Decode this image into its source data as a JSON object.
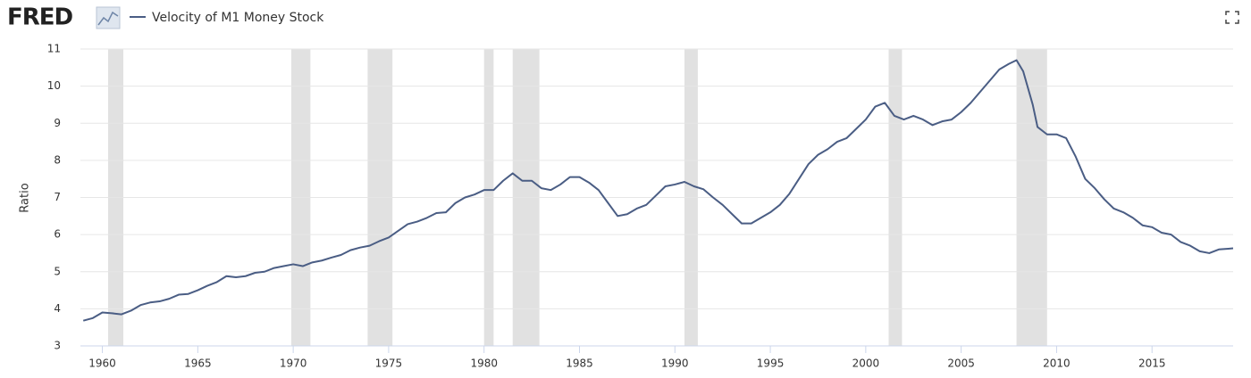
{
  "logo": "FRED",
  "chart_data": {
    "type": "line",
    "ylabel": "Ratio",
    "x": [
      1959,
      1959.5,
      1960,
      1960.5,
      1961,
      1961.5,
      1962,
      1962.5,
      1963,
      1963.5,
      1964,
      1964.5,
      1965,
      1965.5,
      1966,
      1966.5,
      1967,
      1967.5,
      1968,
      1968.5,
      1969,
      1969.5,
      1970,
      1970.5,
      1971,
      1971.5,
      1972,
      1972.5,
      1973,
      1973.5,
      1974,
      1974.5,
      1975,
      1975.5,
      1976,
      1976.5,
      1977,
      1977.5,
      1978,
      1978.5,
      1979,
      1979.5,
      1980,
      1980.5,
      1981,
      1981.5,
      1982,
      1982.5,
      1983,
      1983.5,
      1984,
      1984.5,
      1985,
      1985.5,
      1986,
      1986.5,
      1987,
      1987.5,
      1988,
      1988.5,
      1989,
      1989.5,
      1990,
      1990.5,
      1991,
      1991.5,
      1992,
      1992.5,
      1993,
      1993.5,
      1994,
      1994.5,
      1995,
      1995.5,
      1996,
      1996.5,
      1997,
      1997.5,
      1998,
      1998.5,
      1999,
      1999.5,
      2000,
      2000.5,
      2001,
      2001.5,
      2002,
      2002.5,
      2003,
      2003.5,
      2004,
      2004.5,
      2005,
      2005.5,
      2006,
      2006.5,
      2007,
      2007.5,
      2007.9,
      2008.25,
      2008.75,
      2009,
      2009.5,
      2010,
      2010.5,
      2011,
      2011.5,
      2012,
      2012.5,
      2013,
      2013.5,
      2014,
      2014.5,
      2015,
      2015.5,
      2016,
      2016.5,
      2017,
      2017.5,
      2018,
      2018.5,
      2019,
      2019.25
    ],
    "series": [
      {
        "name": "Velocity of M1 Money Stock",
        "color": "#4a5d84",
        "values": [
          3.68,
          3.75,
          3.9,
          3.88,
          3.85,
          3.95,
          4.1,
          4.17,
          4.2,
          4.27,
          4.38,
          4.4,
          4.5,
          4.62,
          4.72,
          4.88,
          4.85,
          4.88,
          4.97,
          5.0,
          5.1,
          5.15,
          5.2,
          5.15,
          5.25,
          5.3,
          5.38,
          5.45,
          5.58,
          5.65,
          5.7,
          5.82,
          5.92,
          6.1,
          6.28,
          6.35,
          6.45,
          6.58,
          6.6,
          6.85,
          7.0,
          7.08,
          7.2,
          7.2,
          7.45,
          7.65,
          7.45,
          7.45,
          7.25,
          7.2,
          7.35,
          7.55,
          7.55,
          7.4,
          7.2,
          6.85,
          6.5,
          6.55,
          6.7,
          6.8,
          7.05,
          7.3,
          7.35,
          7.42,
          7.3,
          7.22,
          7.0,
          6.8,
          6.55,
          6.3,
          6.3,
          6.45,
          6.6,
          6.8,
          7.1,
          7.5,
          7.9,
          8.15,
          8.3,
          8.5,
          8.6,
          8.85,
          9.1,
          9.45,
          9.55,
          9.2,
          9.1,
          9.2,
          9.1,
          8.95,
          9.05,
          9.1,
          9.3,
          9.55,
          9.85,
          10.15,
          10.45,
          10.6,
          10.7,
          10.4,
          9.5,
          8.9,
          8.7,
          8.7,
          8.6,
          8.1,
          7.5,
          7.25,
          6.95,
          6.7,
          6.6,
          6.45,
          6.25,
          6.2,
          6.05,
          6.0,
          5.8,
          5.7,
          5.55,
          5.5,
          5.6,
          5.62,
          5.63
        ]
      }
    ],
    "recessions": [
      [
        1960.3,
        1961.1
      ],
      [
        1969.9,
        1970.9
      ],
      [
        1973.9,
        1975.2
      ],
      [
        1980.0,
        1980.5
      ],
      [
        1981.5,
        1982.9
      ],
      [
        1990.5,
        1991.2
      ],
      [
        2001.2,
        2001.9
      ],
      [
        2007.9,
        2009.5
      ]
    ],
    "recession_color": "#e1e1e1",
    "xlim": [
      1958.85,
      2019.25
    ],
    "xticks": [
      1960,
      1965,
      1970,
      1975,
      1980,
      1985,
      1990,
      1995,
      2000,
      2005,
      2010,
      2015
    ],
    "ylim": [
      3,
      11
    ],
    "yticks": [
      3,
      4,
      5,
      6,
      7,
      8,
      9,
      10,
      11
    ],
    "grid": true
  }
}
